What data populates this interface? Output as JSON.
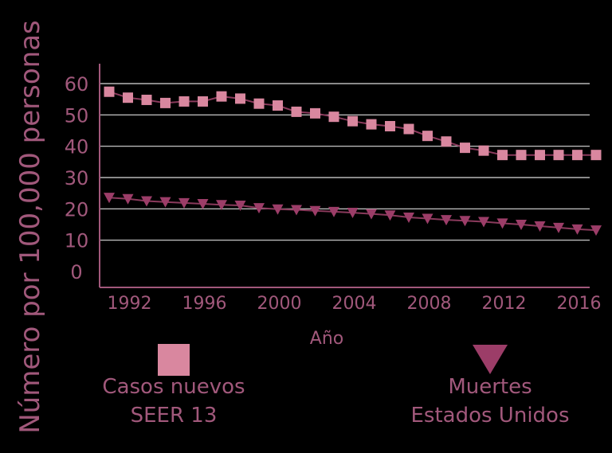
{
  "chart_data": {
    "type": "line",
    "title": "",
    "xlabel": "Año",
    "ylabel": "Número por 100,000  personas",
    "xlim": [
      1991,
      2017
    ],
    "ylim": [
      0,
      60
    ],
    "x_ticks": [
      1992,
      1996,
      2000,
      2004,
      2008,
      2012,
      2016
    ],
    "y_ticks": [
      0,
      10,
      20,
      30,
      40,
      50,
      60
    ],
    "grid": true,
    "legend_position": "bottom",
    "colors": {
      "background": "#000000",
      "axis": "#a1587b",
      "grid": "#dddddd",
      "new_cases": "#d9879f",
      "deaths": "#9c3d68",
      "line": "#8a3a5c",
      "text": "#a1587b"
    },
    "series": [
      {
        "key": "new_cases",
        "name_lines": [
          "Casos nuevos",
          "SEER 13"
        ],
        "marker": "square",
        "x": [
          1991,
          1992,
          1993,
          1994,
          1995,
          1996,
          1997,
          1998,
          1999,
          2000,
          2001,
          2002,
          2003,
          2004,
          2005,
          2006,
          2007,
          2008,
          2009,
          2010,
          2011,
          2012,
          2013,
          2014,
          2015,
          2016,
          2017
        ],
        "values": [
          57.4,
          55.5,
          54.8,
          53.8,
          54.3,
          54.3,
          55.9,
          55.2,
          53.6,
          53.0,
          51.0,
          50.5,
          49.4,
          48.0,
          47.0,
          46.4,
          45.5,
          43.3,
          41.5,
          39.5,
          38.6,
          37.2,
          37.2,
          37.2,
          37.2,
          37.2,
          37.2
        ]
      },
      {
        "key": "deaths",
        "name_lines": [
          "Muertes",
          "Estados Unidos"
        ],
        "marker": "triangle-down",
        "x": [
          1991,
          1992,
          1993,
          1994,
          1995,
          1996,
          1997,
          1998,
          1999,
          2000,
          2001,
          2002,
          2003,
          2004,
          2005,
          2006,
          2007,
          2008,
          2009,
          2010,
          2011,
          2012,
          2013,
          2014,
          2015,
          2016,
          2017
        ],
        "values": [
          23.6,
          23.2,
          22.5,
          22.2,
          21.9,
          21.6,
          21.3,
          21.1,
          20.3,
          19.9,
          19.7,
          19.4,
          19.1,
          18.8,
          18.4,
          18.0,
          17.3,
          16.9,
          16.5,
          16.2,
          15.9,
          15.4,
          15.0,
          14.5,
          14.0,
          13.5,
          13.2
        ]
      }
    ]
  }
}
